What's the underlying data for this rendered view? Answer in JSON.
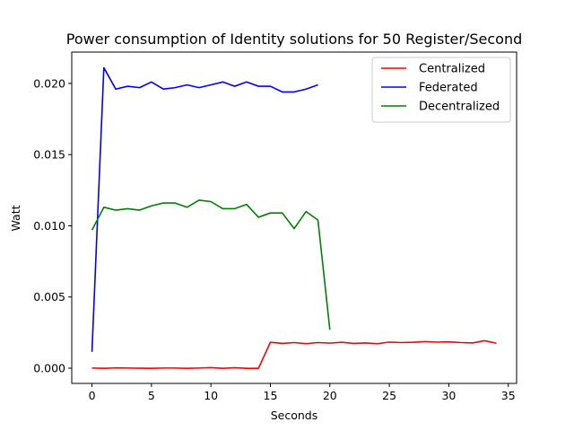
{
  "chart_data": {
    "type": "line",
    "title": "Power consumption of Identity solutions for 50 Register/Second",
    "xlabel": "Seconds",
    "ylabel": "Watt",
    "xlim": [
      -1.7,
      35.7
    ],
    "ylim": [
      -0.00107,
      0.0222
    ],
    "xticks": [
      0,
      5,
      10,
      15,
      20,
      25,
      30,
      35
    ],
    "yticks": [
      0.0,
      0.005,
      0.01,
      0.015,
      0.02
    ],
    "xtick_labels": [
      "0",
      "5",
      "10",
      "15",
      "20",
      "25",
      "30",
      "35"
    ],
    "ytick_labels": [
      "0.000",
      "0.005",
      "0.010",
      "0.015",
      "0.020"
    ],
    "grid": false,
    "legend_position": "top-right",
    "series": [
      {
        "name": "Centralized",
        "color": "#ff0000",
        "x": [
          0,
          1,
          2,
          3,
          4,
          5,
          6,
          7,
          8,
          9,
          10,
          11,
          12,
          13,
          14,
          15,
          16,
          17,
          18,
          19,
          20,
          21,
          22,
          23,
          24,
          25,
          26,
          27,
          28,
          29,
          30,
          31,
          32,
          33,
          34
        ],
        "values": [
          1e-05,
          -1e-05,
          2e-05,
          1e-05,
          0.0,
          -1e-05,
          1e-05,
          1e-05,
          -1e-05,
          1e-05,
          4e-05,
          -1e-05,
          3e-05,
          -1e-05,
          -1e-05,
          0.00182,
          0.00174,
          0.0018,
          0.00172,
          0.0018,
          0.00176,
          0.00182,
          0.00174,
          0.00177,
          0.00172,
          0.00183,
          0.0018,
          0.00182,
          0.00187,
          0.00183,
          0.00185,
          0.0018,
          0.00177,
          0.00193,
          0.00175
        ]
      },
      {
        "name": "Federated",
        "color": "#0000ff",
        "x": [
          0,
          1,
          2,
          3,
          4,
          5,
          6,
          7,
          8,
          9,
          10,
          11,
          12,
          13,
          14,
          15,
          16,
          17,
          18,
          19
        ],
        "values": [
          0.00115,
          0.0211,
          0.0196,
          0.0198,
          0.0197,
          0.0201,
          0.0196,
          0.0197,
          0.0199,
          0.0197,
          0.0199,
          0.0201,
          0.0198,
          0.0201,
          0.0198,
          0.0198,
          0.0194,
          0.0194,
          0.0196,
          0.0199
        ]
      },
      {
        "name": "Decentralized",
        "color": "#008000",
        "x": [
          0,
          1,
          2,
          3,
          4,
          5,
          6,
          7,
          8,
          9,
          10,
          11,
          12,
          13,
          14,
          15,
          16,
          17,
          18,
          19,
          20
        ],
        "values": [
          0.0097,
          0.0113,
          0.0111,
          0.0112,
          0.0111,
          0.0114,
          0.0116,
          0.0116,
          0.0113,
          0.0118,
          0.0117,
          0.0112,
          0.0112,
          0.0115,
          0.0106,
          0.0109,
          0.0109,
          0.0098,
          0.011,
          0.0104,
          0.0027
        ]
      }
    ]
  }
}
